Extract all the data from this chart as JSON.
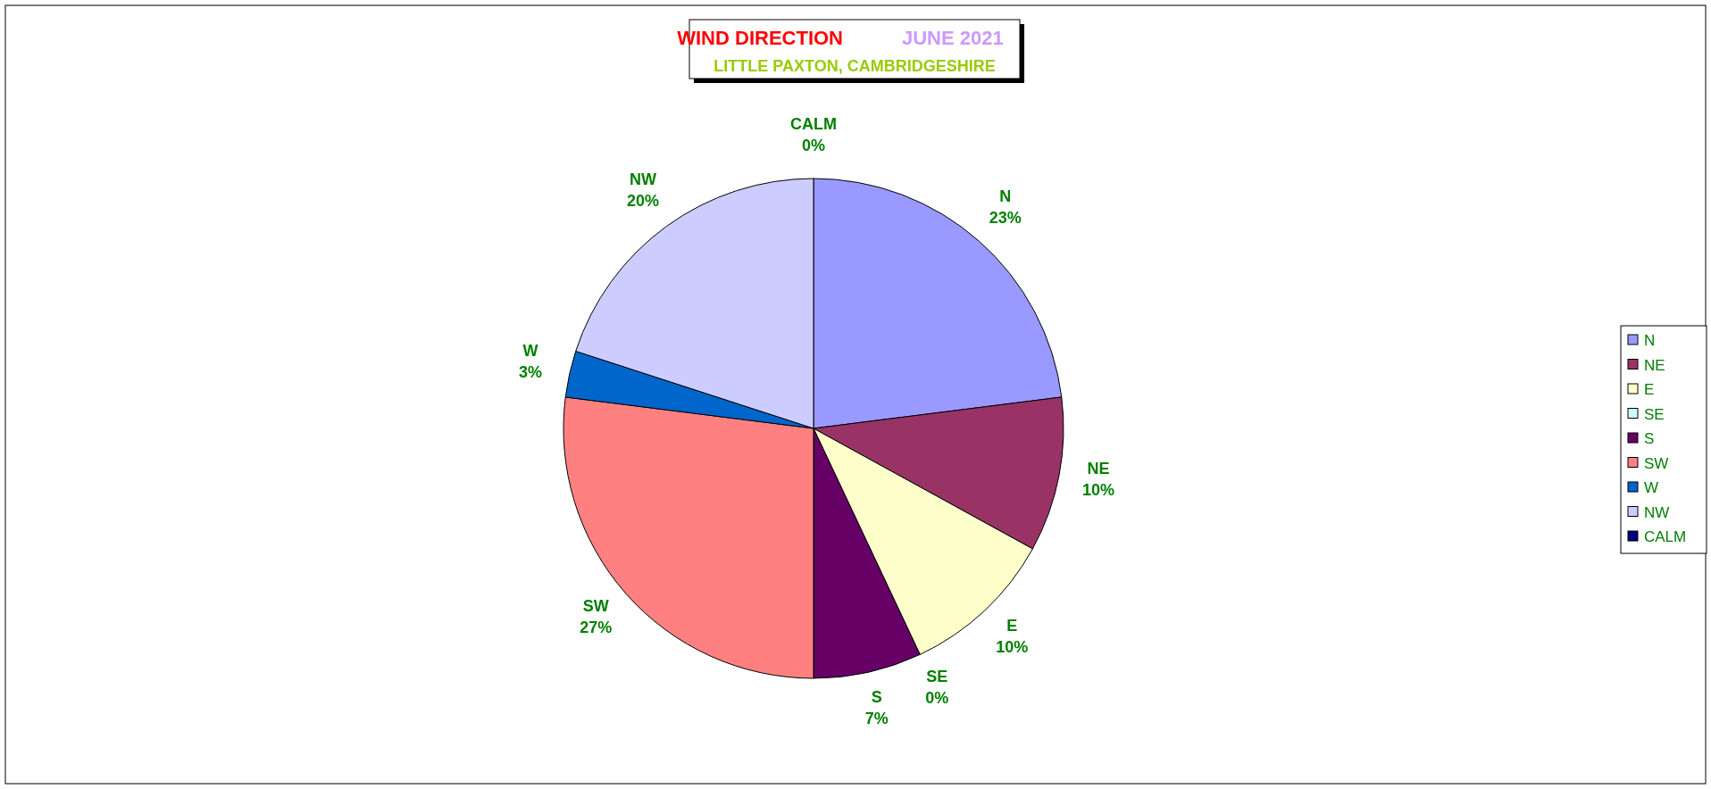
{
  "chart_data": {
    "type": "pie",
    "title": "WIND DIRECTION",
    "subtitle": "JUNE 2021",
    "annotations": [
      "LITTLE PAXTON, CAMBRIDGESHIRE"
    ],
    "categories": [
      "N",
      "NE",
      "E",
      "SE",
      "S",
      "SW",
      "W",
      "NW",
      "CALM"
    ],
    "values": [
      23,
      10,
      10,
      0,
      7,
      27,
      3,
      20,
      0
    ],
    "value_labels": [
      "23%",
      "10%",
      "10%",
      "0%",
      "7%",
      "27%",
      "3%",
      "20%",
      "0%"
    ],
    "colors": [
      "#9999ff",
      "#993366",
      "#ffffcc",
      "#ccffff",
      "#660066",
      "#ff8080",
      "#0066cc",
      "#ccccff",
      "#000080"
    ],
    "legend": "right"
  }
}
